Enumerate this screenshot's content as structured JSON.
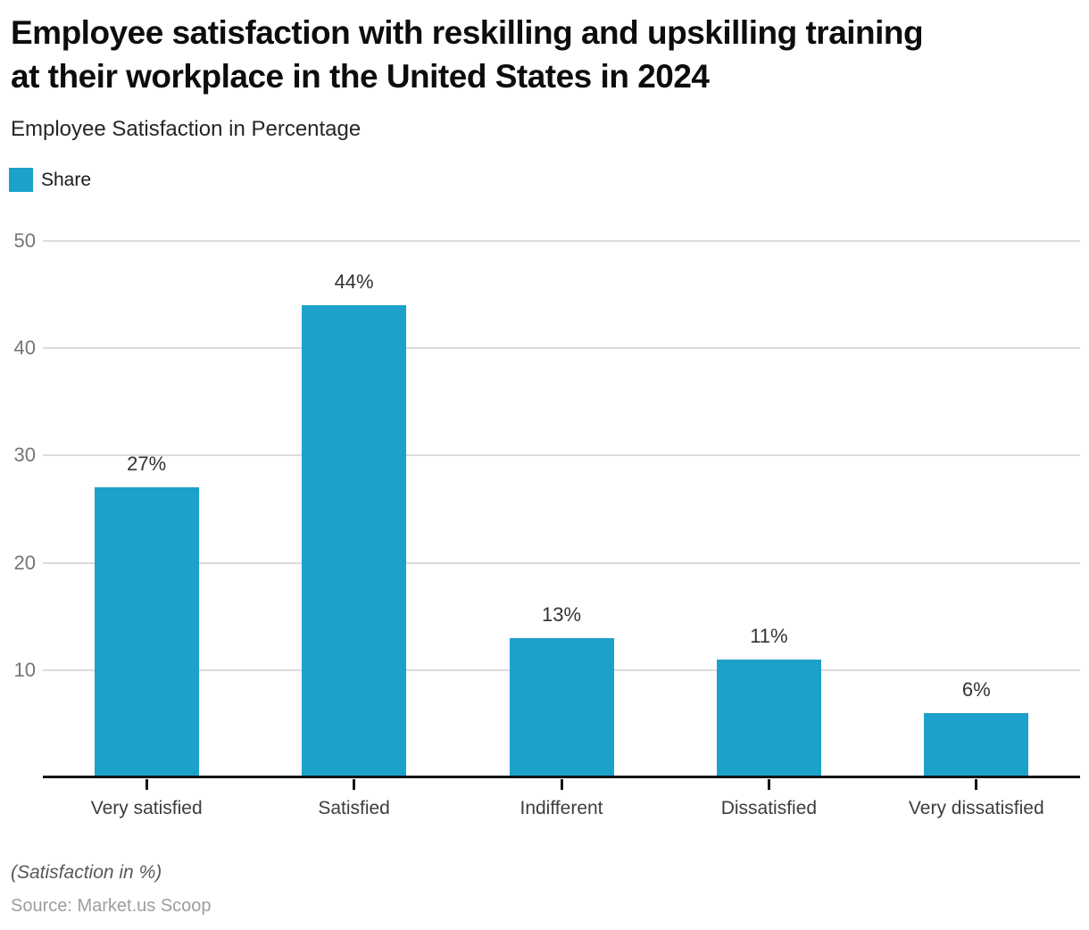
{
  "header": {
    "title_line1": "Employee satisfaction with reskilling and upskilling training",
    "title_line2": "at their workplace in the United States in 2024",
    "subtitle": "Employee Satisfaction in Percentage"
  },
  "legend": {
    "label": "Share",
    "swatch_color": "#1CA1CB"
  },
  "chart_data": {
    "type": "bar",
    "title": "Employee satisfaction with reskilling and upskilling training at their workplace in the United States in 2024",
    "subtitle": "Employee Satisfaction in Percentage",
    "categories": [
      "Very satisfied",
      "Satisfied",
      "Indifferent",
      "Dissatisfied",
      "Very dissatisfied"
    ],
    "series": [
      {
        "name": "Share",
        "values": [
          27,
          44,
          13,
          11,
          6
        ]
      }
    ],
    "value_labels": [
      "27%",
      "44%",
      "13%",
      "11%",
      "6%"
    ],
    "xlabel": "",
    "ylabel": "Employee Satisfaction in Percentage",
    "ylim": [
      0,
      50
    ],
    "yticks": [
      10,
      20,
      30,
      40,
      50
    ],
    "grid": true,
    "legend_position": "top-left",
    "bar_color": "#1CA1CB",
    "gridline_color": "#dcdcdc",
    "axis_color": "#141414"
  },
  "footer": {
    "note": "(Satisfaction in %)",
    "source": "Source: Market.us Scoop"
  }
}
